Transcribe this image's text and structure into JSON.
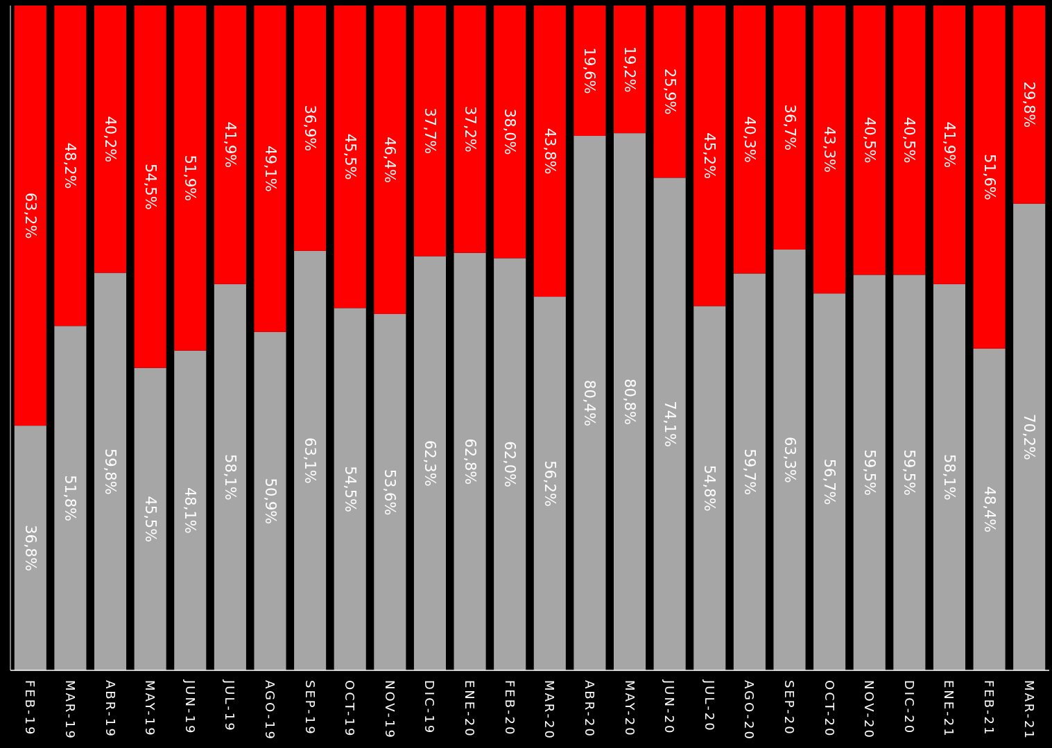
{
  "chart_data": {
    "type": "bar",
    "stacked": true,
    "categories": [
      "FEB-19",
      "MAR-19",
      "ABR-19",
      "MAY-19",
      "JUN-19",
      "JUL-19",
      "AGO-19",
      "SEP-19",
      "OCT-19",
      "NOV-19",
      "DIC-19",
      "ENE-20",
      "FEB-20",
      "MAR-20",
      "ABR-20",
      "MAY-20",
      "JUN-20",
      "JUL-20",
      "AGO-20",
      "SEP-20",
      "OCT-20",
      "NOV-20",
      "DIC-20",
      "ENE-21",
      "FEB-21",
      "MAR-21"
    ],
    "series": [
      {
        "color": "#a6a6a6",
        "values": [
          36.8,
          51.8,
          59.8,
          45.5,
          48.1,
          58.1,
          50.9,
          63.1,
          54.5,
          53.6,
          62.3,
          62.8,
          62.0,
          56.2,
          80.4,
          80.8,
          74.1,
          54.8,
          59.7,
          63.3,
          56.7,
          59.5,
          59.5,
          58.1,
          48.4,
          70.2
        ],
        "value_labels": [
          "36,8%",
          "51,8%",
          "59,8%",
          "45,5%",
          "48,1%",
          "58,1%",
          "50,9%",
          "63,1%",
          "54,5%",
          "53,6%",
          "62,3%",
          "62,8%",
          "62,0%",
          "56,2%",
          "80,4%",
          "80,8%",
          "74,1%",
          "54,8%",
          "59,7%",
          "63,3%",
          "56,7%",
          "59,5%",
          "59,5%",
          "58,1%",
          "48,4%",
          "70,2%"
        ]
      },
      {
        "color": "#ff0000",
        "values": [
          63.2,
          48.2,
          40.2,
          54.5,
          51.9,
          41.9,
          49.1,
          36.9,
          45.5,
          46.4,
          37.7,
          37.2,
          38.0,
          43.8,
          19.6,
          19.2,
          25.9,
          45.2,
          40.3,
          36.7,
          43.3,
          40.5,
          40.5,
          41.9,
          51.6,
          29.8
        ],
        "value_labels": [
          "63,2%",
          "48,2%",
          "40,2%",
          "54,5%",
          "51,9%",
          "41,9%",
          "49,1%",
          "36,9%",
          "45,5%",
          "46,4%",
          "37,7%",
          "37,2%",
          "38,0%",
          "43,8%",
          "19,6%",
          "19,2%",
          "25,9%",
          "45,2%",
          "40,3%",
          "36,7%",
          "43,3%",
          "40,5%",
          "40,5%",
          "41,9%",
          "51,6%",
          "29,8%"
        ]
      }
    ]
  }
}
